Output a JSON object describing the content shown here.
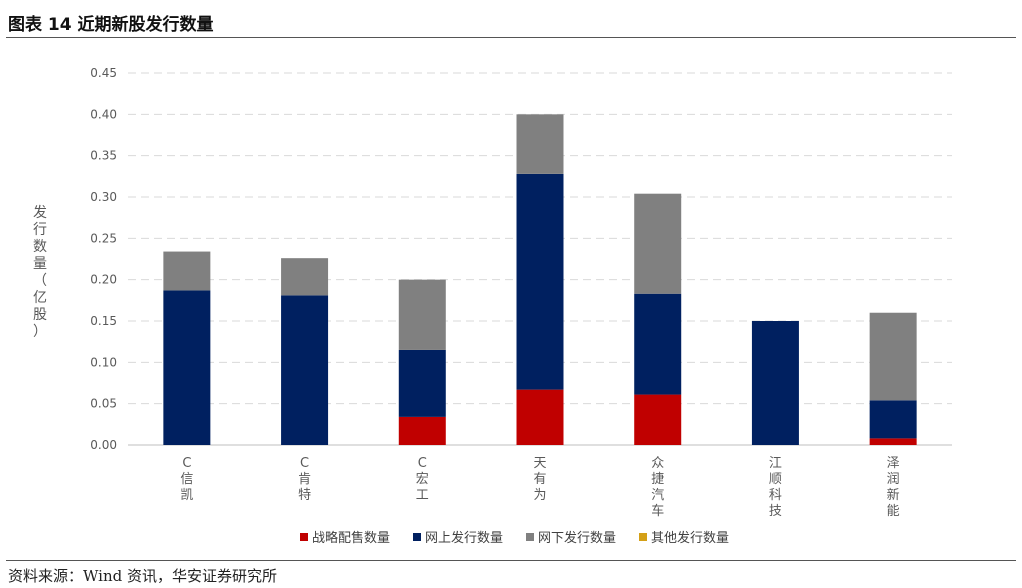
{
  "figure_title": "图表 14 近期新股发行数量",
  "source": "资料来源：Wind 资讯，华安证券研究所",
  "colors": {
    "strategic": "#C00000",
    "online": "#002060",
    "offline": "#808080",
    "other": "#D4A017",
    "grid": "#D9D9D9",
    "axis": "#BFBFBF"
  },
  "chart_data": {
    "type": "bar",
    "stacked": true,
    "title": "",
    "xlabel": "",
    "ylabel": "发行数量（亿股）",
    "ylim": [
      0,
      0.45
    ],
    "yticks": [
      "0.00",
      "0.05",
      "0.10",
      "0.15",
      "0.20",
      "0.25",
      "0.30",
      "0.35",
      "0.40",
      "0.45"
    ],
    "grid": true,
    "legend_position": "bottom",
    "categories": [
      "C信凯",
      "C肯特",
      "C宏工",
      "天有为",
      "众捷汽车",
      "江顺科技",
      "泽润新能"
    ],
    "series": [
      {
        "name": "战略配售数量",
        "color": "#C00000",
        "values": [
          0,
          0,
          0.034,
          0.067,
          0.061,
          0,
          0.008
        ]
      },
      {
        "name": "网上发行数量",
        "color": "#002060",
        "values": [
          0.187,
          0.181,
          0.081,
          0.261,
          0.122,
          0.15,
          0.046
        ]
      },
      {
        "name": "网下发行数量",
        "color": "#808080",
        "values": [
          0.047,
          0.045,
          0.085,
          0.072,
          0.121,
          0,
          0.106
        ]
      },
      {
        "name": "其他发行数量",
        "color": "#D4A017",
        "values": [
          0,
          0,
          0,
          0,
          0,
          0,
          0
        ]
      }
    ]
  }
}
